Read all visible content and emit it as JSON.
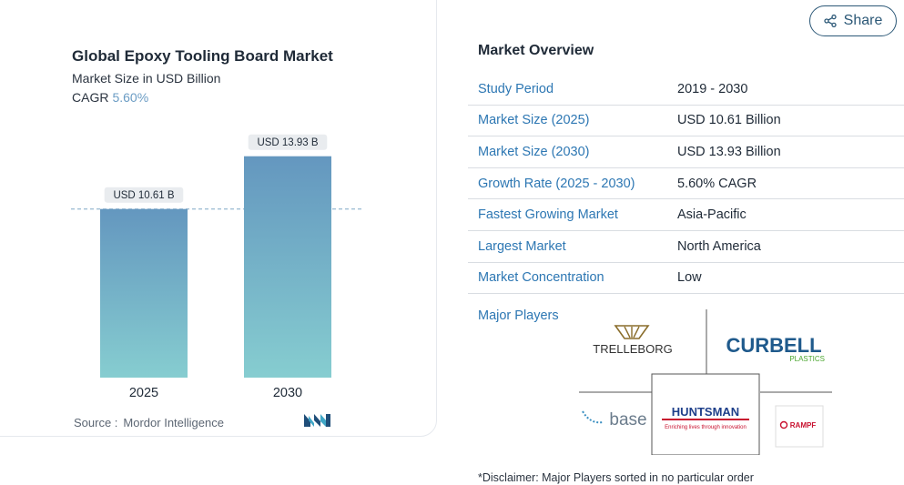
{
  "header": {
    "share_label": "Share"
  },
  "chart": {
    "title": "Global Epoxy Tooling Board Market",
    "subtitle": "Market Size in USD Billion",
    "cagr_label": "CAGR",
    "cagr_value": "5.60%",
    "source_label": "Source :",
    "source_value": "Mordor Intelligence"
  },
  "chart_data": {
    "type": "bar",
    "title": "Global Epoxy Tooling Board Market",
    "subtitle": "Market Size in USD Billion",
    "categories": [
      "2025",
      "2030"
    ],
    "values": [
      10.61,
      13.93
    ],
    "data_labels": [
      "USD 10.61 B",
      "USD 13.93 B"
    ],
    "xlabel": "",
    "ylabel": "",
    "ylim": [
      0,
      14.6
    ],
    "grid": false,
    "reference_line": 10.61,
    "bar_color_top": "#6497bf",
    "bar_color_bottom": "#86cdd0"
  },
  "overview": {
    "title": "Market Overview",
    "rows": [
      {
        "label": "Study Period",
        "value": "2019 - 2030"
      },
      {
        "label": "Market Size (2025)",
        "value": "USD 10.61 Billion"
      },
      {
        "label": "Market Size (2030)",
        "value": "USD 13.93 Billion"
      },
      {
        "label": "Growth Rate (2025 - 2030)",
        "value": "5.60% CAGR"
      },
      {
        "label": "Fastest Growing Market",
        "value": "Asia-Pacific"
      },
      {
        "label": "Largest Market",
        "value": "North America"
      },
      {
        "label": "Market Concentration",
        "value": "Low"
      }
    ],
    "players_label": "Major Players",
    "players": {
      "trelleborg": "TRELLEBORG",
      "curbell": "CURBELL",
      "curbell_sub": "PLASTICS",
      "base": "base",
      "huntsman": "HUNTSMAN",
      "huntsman_tagline": "Enriching lives through innovation",
      "rampf": "RAMPF"
    }
  },
  "disclaimer": "*Disclaimer: Major Players sorted in no particular order"
}
